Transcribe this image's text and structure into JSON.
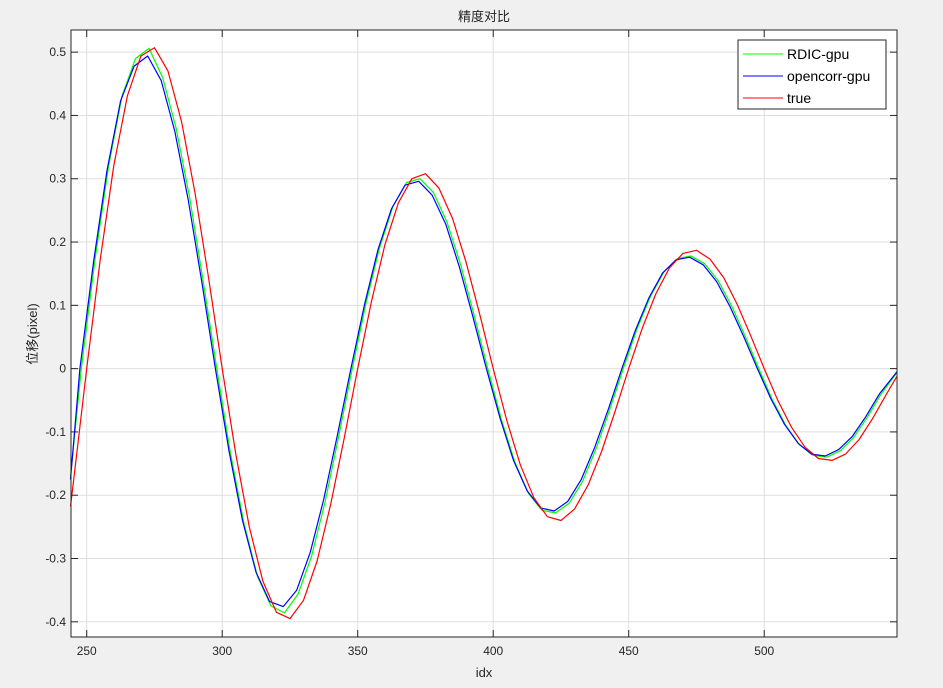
{
  "chart_data": {
    "type": "line",
    "title": "精度对比",
    "xlabel": "idx",
    "ylabel": "位移(pixel)",
    "xlim": [
      244.2,
      549
    ],
    "ylim": [
      -0.424,
      0.535
    ],
    "xticks": [
      250,
      300,
      350,
      400,
      450,
      500
    ],
    "yticks": [
      -0.4,
      -0.3,
      -0.2,
      -0.1,
      0,
      0.1,
      0.2,
      0.3,
      0.4,
      0.5
    ],
    "ytick_labels": [
      "-0.4",
      "-0.3",
      "-0.2",
      "-0.1",
      "0",
      "0.1",
      "0.2",
      "0.3",
      "0.4",
      "0.5"
    ],
    "grid": true,
    "legend_position": "top-right",
    "series": [
      {
        "name": "RDIC-gpu",
        "color": "#00ff00",
        "x": [
          244,
          248,
          253,
          258,
          263,
          268,
          273,
          278,
          283,
          288,
          293,
          298,
          303,
          308,
          313,
          318,
          323,
          328,
          333,
          338,
          343,
          348,
          353,
          358,
          363,
          368,
          373,
          378,
          383,
          388,
          393,
          398,
          403,
          408,
          413,
          418,
          423,
          428,
          433,
          438,
          443,
          448,
          453,
          458,
          463,
          468,
          473,
          478,
          483,
          488,
          493,
          498,
          503,
          508,
          513,
          518,
          523,
          528,
          533,
          538,
          543,
          549
        ],
        "y": [
          -0.17,
          0.0,
          0.17,
          0.318,
          0.43,
          0.49,
          0.506,
          0.46,
          0.38,
          0.27,
          0.138,
          0.0,
          -0.132,
          -0.244,
          -0.328,
          -0.375,
          -0.386,
          -0.356,
          -0.296,
          -0.21,
          -0.107,
          0.0,
          0.102,
          0.19,
          0.256,
          0.294,
          0.3,
          0.278,
          0.231,
          0.164,
          0.084,
          0.0,
          -0.08,
          -0.148,
          -0.197,
          -0.224,
          -0.228,
          -0.213,
          -0.178,
          -0.126,
          -0.065,
          0.0,
          0.062,
          0.114,
          0.153,
          0.174,
          0.178,
          0.166,
          0.139,
          0.099,
          0.051,
          0.0,
          -0.049,
          -0.09,
          -0.12,
          -0.137,
          -0.14,
          -0.13,
          -0.109,
          -0.077,
          -0.041,
          -0.006
        ]
      },
      {
        "name": "opencorr-gpu",
        "color": "#0000ff",
        "x": [
          244,
          247.5,
          252.5,
          257.5,
          262.5,
          267.5,
          272.5,
          277.5,
          282.5,
          287.5,
          292.5,
          297.5,
          302.5,
          307.5,
          312.5,
          317.5,
          322.5,
          327.5,
          332.5,
          337.5,
          342.5,
          347.5,
          352.5,
          357.5,
          362.5,
          367.5,
          372.5,
          377.5,
          382.5,
          387.5,
          392.5,
          397.5,
          402.5,
          407.5,
          412.5,
          417.5,
          422.5,
          427.5,
          432.5,
          437.5,
          442.5,
          447.5,
          452.5,
          457.5,
          462.5,
          467.5,
          472.5,
          477.5,
          482.5,
          487.5,
          492.5,
          497.5,
          502.5,
          507.5,
          512.5,
          517.5,
          522.5,
          527.5,
          532.5,
          537.5,
          542.5,
          549
        ],
        "y": [
          -0.175,
          0.0,
          0.168,
          0.313,
          0.423,
          0.478,
          0.494,
          0.455,
          0.375,
          0.266,
          0.136,
          0.0,
          -0.13,
          -0.24,
          -0.322,
          -0.368,
          -0.376,
          -0.35,
          -0.29,
          -0.206,
          -0.105,
          0.0,
          0.101,
          0.188,
          0.253,
          0.29,
          0.296,
          0.274,
          0.228,
          0.161,
          0.082,
          0.0,
          -0.078,
          -0.145,
          -0.193,
          -0.22,
          -0.225,
          -0.21,
          -0.175,
          -0.124,
          -0.064,
          0.0,
          0.061,
          0.112,
          0.151,
          0.172,
          0.176,
          0.164,
          0.137,
          0.097,
          0.05,
          0.0,
          -0.048,
          -0.088,
          -0.118,
          -0.135,
          -0.138,
          -0.128,
          -0.107,
          -0.076,
          -0.04,
          -0.005
        ]
      },
      {
        "name": "true",
        "color": "#ff0000",
        "x": [
          244,
          245,
          250,
          255,
          260,
          265,
          270,
          275,
          280,
          285,
          290,
          295,
          300,
          305,
          310,
          315,
          320,
          325,
          330,
          335,
          340,
          345,
          350,
          355,
          360,
          365,
          370,
          375,
          380,
          385,
          390,
          395,
          400,
          405,
          410,
          415,
          420,
          425,
          430,
          435,
          440,
          445,
          450,
          455,
          460,
          465,
          470,
          475,
          480,
          485,
          490,
          495,
          500,
          505,
          510,
          515,
          520,
          525,
          530,
          535,
          540,
          545,
          549
        ],
        "y": [
          -0.218,
          -0.182,
          0.0,
          0.173,
          0.321,
          0.431,
          0.494,
          0.507,
          0.47,
          0.39,
          0.277,
          0.142,
          0.0,
          -0.135,
          -0.25,
          -0.336,
          -0.385,
          -0.395,
          -0.366,
          -0.304,
          -0.215,
          -0.11,
          0.0,
          0.105,
          0.195,
          0.262,
          0.3,
          0.308,
          0.285,
          0.237,
          0.168,
          0.086,
          0.0,
          -0.082,
          -0.152,
          -0.204,
          -0.234,
          -0.24,
          -0.222,
          -0.184,
          -0.131,
          -0.067,
          0.0,
          0.064,
          0.118,
          0.159,
          0.182,
          0.187,
          0.173,
          0.144,
          0.102,
          0.052,
          0.0,
          -0.05,
          -0.092,
          -0.124,
          -0.142,
          -0.145,
          -0.135,
          -0.112,
          -0.079,
          -0.041,
          -0.012
        ]
      }
    ]
  },
  "colors": {
    "background": "#f0f0f0",
    "axes": "#262626",
    "grid": "#dfdfdf"
  }
}
